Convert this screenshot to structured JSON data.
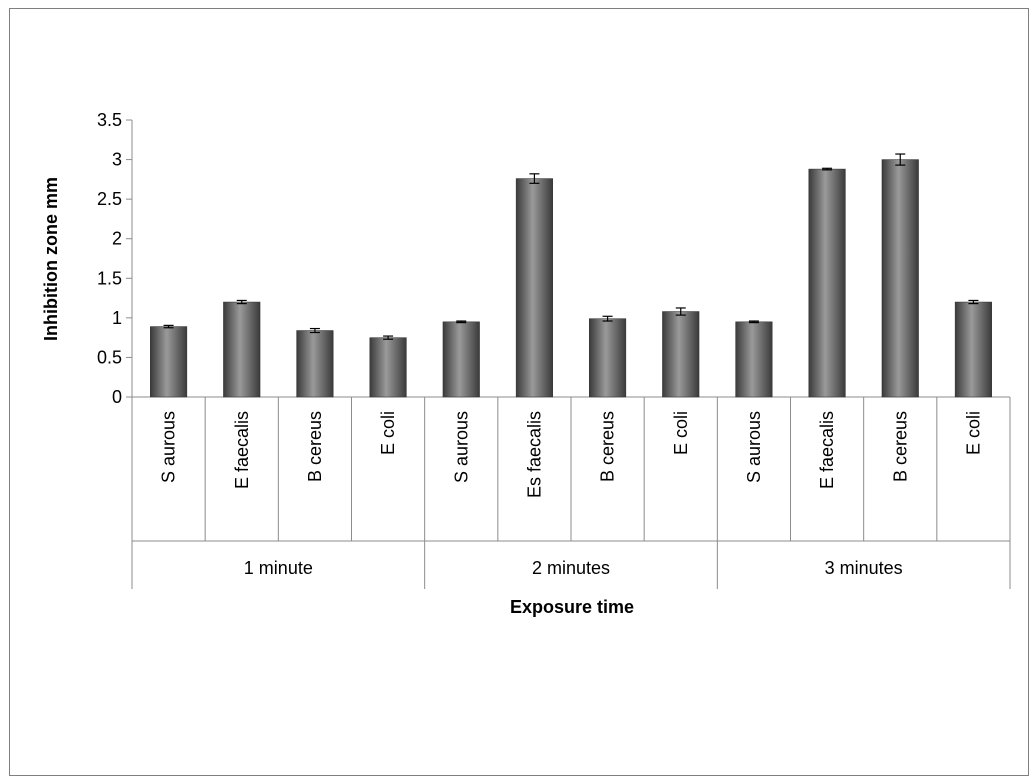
{
  "chart_data": {
    "type": "bar",
    "title": "",
    "xlabel": "Exposure time",
    "ylabel": "Inhibition zone mm",
    "ylim": [
      0,
      3.5
    ],
    "yticks": [
      "0",
      "0.5",
      "1",
      "1.5",
      "2",
      "2.5",
      "3",
      "3.5"
    ],
    "grid": false,
    "legend": "none",
    "groups": [
      {
        "label": "1 minute",
        "categories": [
          "S aurous",
          "E  faecalis",
          "B cereus",
          "E coli"
        ],
        "values": [
          0.89,
          1.2,
          0.84,
          0.75
        ],
        "errors": [
          0.015,
          0.02,
          0.025,
          0.02
        ]
      },
      {
        "label": "2 minutes",
        "categories": [
          "S aurous",
          "Es  faecalis",
          "B cereus",
          "E coli"
        ],
        "values": [
          0.95,
          2.76,
          0.99,
          1.08
        ],
        "errors": [
          0.01,
          0.06,
          0.03,
          0.045
        ]
      },
      {
        "label": "3 minutes",
        "categories": [
          "S aurous",
          "E faecalis",
          "B cereus",
          "E coli"
        ],
        "values": [
          0.95,
          2.88,
          3.0,
          1.2
        ],
        "errors": [
          0.01,
          0.01,
          0.07,
          0.02
        ]
      }
    ],
    "colors": {
      "bar_dark": "#3a3a3a",
      "bar_light": "#9a9a9a",
      "axis": "#8c8c8c"
    }
  }
}
